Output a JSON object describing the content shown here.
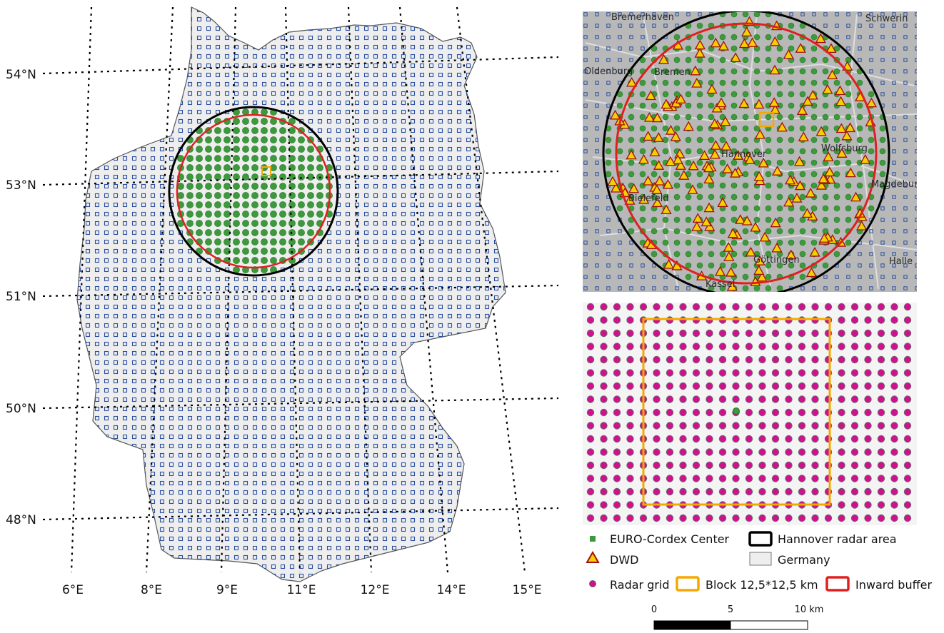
{
  "main_map": {
    "lat_labels": [
      "54°N",
      "53°N",
      "51°N",
      "50°N",
      "48°N"
    ],
    "lon_labels": [
      "6°E",
      "8°E",
      "9°E",
      "11°E",
      "12°E",
      "14°E",
      "15°E"
    ]
  },
  "inset_top": {
    "city_labels": [
      "Bremerhaven",
      "Schwerin",
      "Bremen",
      "Hannover",
      "Wolfsburg",
      "Magdeburg",
      "Bielefeld",
      "Halle",
      "Kassel",
      "Göttingen",
      "Oldenburg"
    ]
  },
  "legend": {
    "euro_cordex": "EURO-Cordex Center",
    "hannover_radar": "Hannover radar area",
    "dwd": "DWD",
    "germany": "Germany",
    "radar_grid": "Radar grid",
    "block": "Block 12,5*12,5 km",
    "inward_buffer": "Inward buffer"
  },
  "scale_bar": {
    "ticks": [
      "0",
      "5",
      "10 km"
    ]
  },
  "colors": {
    "radar_circle": "#000000",
    "inward_buffer": "#e02020",
    "block": "#f5a800",
    "euro_cordex": "#3c9a3c",
    "dwd_fill": "#f5d000",
    "dwd_stroke": "#a01010",
    "radar_grid": "#d0108f",
    "germany_fill": "#eeeeee",
    "grid_square": "#2a4fa0"
  }
}
